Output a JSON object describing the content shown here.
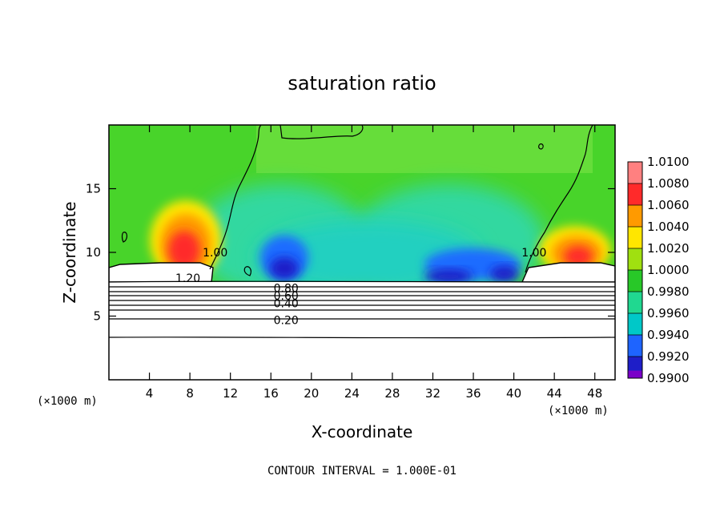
{
  "chart_data": {
    "type": "heatmap",
    "title": "saturation ratio",
    "xlabel": "X-coordinate",
    "ylabel": "Z-coordinate",
    "x_unit": "(×1000 m)",
    "xlim": [
      0,
      50
    ],
    "ylim": [
      0,
      20
    ],
    "x_ticks": [
      4,
      8,
      12,
      16,
      20,
      24,
      28,
      32,
      36,
      40,
      44,
      48
    ],
    "y_ticks": [
      5,
      10,
      15
    ],
    "colorbar": {
      "levels": [
        0.99,
        0.992,
        0.994,
        0.996,
        0.998,
        1.0,
        1.002,
        1.004,
        1.006,
        1.008,
        1.01
      ],
      "labels": [
        "0.9900",
        "0.9920",
        "0.9940",
        "0.9960",
        "0.9980",
        "1.0000",
        "1.0020",
        "1.0040",
        "1.0060",
        "1.0080",
        "1.0100"
      ],
      "colors": [
        "#7a00c8",
        "#1e1ec8",
        "#1e64ff",
        "#00c8c8",
        "#20d890",
        "#28c828",
        "#a0e010",
        "#ffe600",
        "#ff9a00",
        "#ff2a2a",
        "#ff8080"
      ]
    },
    "contour_labels": [
      {
        "text": "1.20",
        "x": 7.8,
        "z": 8.0
      },
      {
        "text": "1.00",
        "x": 10.5,
        "z": 10.0
      },
      {
        "text": "1.00",
        "x": 42.0,
        "z": 10.0
      },
      {
        "text": "0.80",
        "x": 17.5,
        "z": 7.2
      },
      {
        "text": "0.60",
        "x": 17.5,
        "z": 6.6
      },
      {
        "text": "0.40",
        "x": 17.5,
        "z": 6.0
      },
      {
        "text": "0.20",
        "x": 17.5,
        "z": 4.7
      }
    ],
    "contour_interval_text": "CONTOUR INTERVAL = 1.000E-01",
    "colors": {
      "background_field": "#4ad42a",
      "upper_field": "#60dc30"
    }
  }
}
